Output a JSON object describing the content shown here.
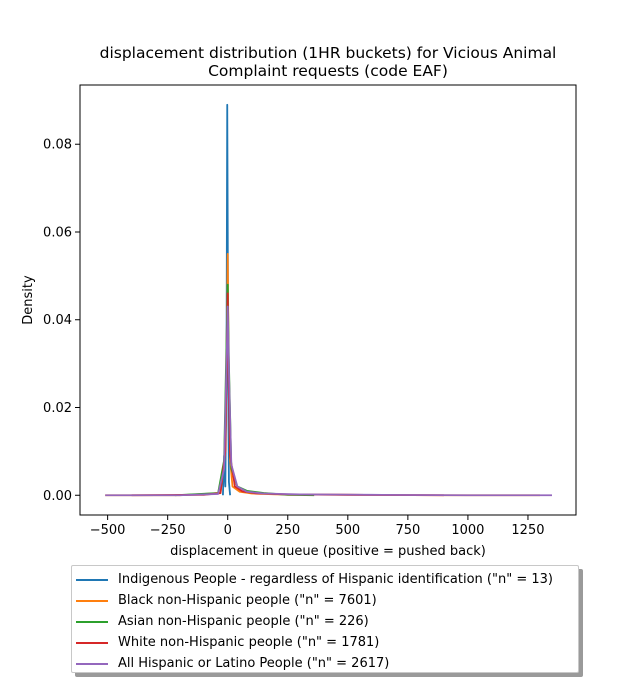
{
  "chart_data": {
    "type": "line",
    "title_line1": "displacement distribution (1HR buckets) for Vicious Animal",
    "title_line2": "Complaint requests (code EAF)",
    "xlabel": "displacement in queue (positive = pushed back)",
    "ylabel": "Density",
    "xlim": [
      -615,
      1450
    ],
    "ylim": [
      -0.0045,
      0.0935
    ],
    "xticks": [
      -500,
      -250,
      0,
      250,
      500,
      750,
      1000,
      1250
    ],
    "xtick_labels": [
      "−500",
      "−250",
      "0",
      "250",
      "500",
      "750",
      "1000",
      "1250"
    ],
    "yticks": [
      0.0,
      0.02,
      0.04,
      0.06,
      0.08
    ],
    "ytick_labels": [
      "0.00",
      "0.02",
      "0.04",
      "0.06",
      "0.08"
    ],
    "legend_position": "below",
    "series": [
      {
        "name": "Indigenous People - regardless of Hispanic identification (\"n\" = 13)",
        "color": "#1f77b4",
        "x": [
          -20,
          -15,
          -10,
          -5,
          -2,
          0,
          2,
          5,
          10
        ],
        "y": [
          0.0,
          0.009,
          0.002,
          0.03,
          0.089,
          0.06,
          0.025,
          0.003,
          0.0
        ]
      },
      {
        "name": "Black non-Hispanic people (\"n\" = 7601)",
        "color": "#ff7f0e",
        "x": [
          -510,
          -200,
          -30,
          -10,
          -3,
          0,
          3,
          10,
          20,
          50,
          100,
          200,
          500,
          900,
          1300
        ],
        "y": [
          0.0,
          0.0,
          0.0005,
          0.01,
          0.04,
          0.055,
          0.035,
          0.008,
          0.002,
          0.0008,
          0.0004,
          0.0002,
          0.0001,
          0.0,
          0.0
        ]
      },
      {
        "name": "Asian non-Hispanic people (\"n\" = 226)",
        "color": "#2ca02c",
        "x": [
          -220,
          -40,
          -15,
          -5,
          0,
          5,
          15,
          40,
          80,
          150,
          250,
          360
        ],
        "y": [
          0.0,
          0.0005,
          0.008,
          0.035,
          0.048,
          0.03,
          0.006,
          0.002,
          0.001,
          0.0005,
          0.0001,
          0.0
        ]
      },
      {
        "name": "White non-Hispanic people (\"n\" = 1781)",
        "color": "#d62728",
        "x": [
          -400,
          -100,
          -30,
          -10,
          -3,
          0,
          3,
          10,
          30,
          60,
          120,
          250,
          500,
          900
        ],
        "y": [
          0.0,
          0.0001,
          0.0005,
          0.01,
          0.035,
          0.046,
          0.03,
          0.009,
          0.002,
          0.0009,
          0.0004,
          0.0002,
          0.0001,
          0.0
        ]
      },
      {
        "name": "All Hispanic or Latino People (\"n\" = 2617)",
        "color": "#9467bd",
        "x": [
          -510,
          -200,
          -40,
          -15,
          -5,
          0,
          5,
          15,
          40,
          80,
          150,
          300,
          600,
          1000,
          1350
        ],
        "y": [
          0.0,
          0.0,
          0.0003,
          0.006,
          0.03,
          0.043,
          0.028,
          0.007,
          0.002,
          0.0008,
          0.0004,
          0.0002,
          0.0001,
          0.0,
          0.0
        ]
      }
    ]
  }
}
